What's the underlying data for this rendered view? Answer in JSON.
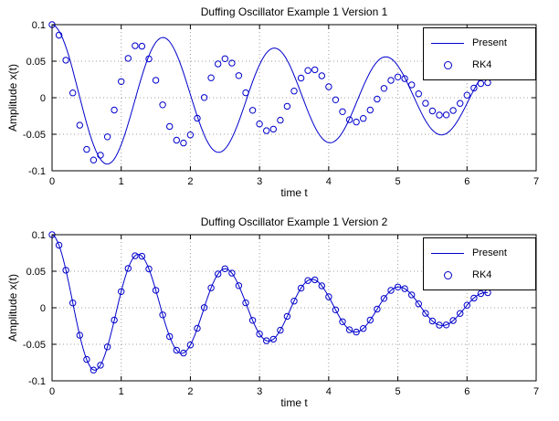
{
  "figure": {
    "background": "#FFFFFF"
  },
  "colors": {
    "accent": "#0000CC",
    "grid": "#9C9C9C",
    "axis": "#000000"
  },
  "chart_data": [
    {
      "type": "line",
      "title": "Duffing Oscillator Example 1 Version 1",
      "xlabel": "time t",
      "ylabel": "Amplitude x(t)",
      "xlim": [
        0,
        7
      ],
      "ylim": [
        -0.1,
        0.1
      ],
      "xticks": [
        0,
        1,
        2,
        3,
        4,
        5,
        6,
        7
      ],
      "xtick_labels": [
        "0",
        "1",
        "2",
        "3",
        "4",
        "5",
        "6",
        "7"
      ],
      "yticks": [
        -0.1,
        -0.05,
        0,
        0.05,
        0.1
      ],
      "ytick_labels": [
        "-0.1",
        "-0.05",
        "0",
        "0.05",
        "0.1"
      ],
      "grid": true,
      "legend": {
        "position": "top-right",
        "entries": [
          {
            "label": "Present",
            "marker": "line"
          },
          {
            "label": "RK4",
            "marker": "circle"
          }
        ]
      },
      "series": [
        {
          "name": "Present",
          "style": "line",
          "color": "#0000CC",
          "t_start": 0,
          "t_end": 6.3,
          "samples": 240,
          "model": {
            "kind": "damped_cosine",
            "amplitude": 0.1,
            "decay": 0.12,
            "omega": 3.9
          }
        },
        {
          "name": "RK4",
          "style": "circle",
          "color": "#0000CC",
          "t_start": 0,
          "t_end": 6.3,
          "samples": 64,
          "model": {
            "kind": "damped_cosine",
            "amplitude": 0.1,
            "decay": 0.25,
            "omega": 5.0
          }
        }
      ]
    },
    {
      "type": "line",
      "title": "Duffing Oscillator Example 1 Version 2",
      "xlabel": "time t",
      "ylabel": "Amplitude x(t)",
      "xlim": [
        0,
        7
      ],
      "ylim": [
        -0.1,
        0.1
      ],
      "xticks": [
        0,
        1,
        2,
        3,
        4,
        5,
        6,
        7
      ],
      "xtick_labels": [
        "0",
        "1",
        "2",
        "3",
        "4",
        "5",
        "6",
        "7"
      ],
      "yticks": [
        -0.1,
        -0.05,
        0,
        0.05,
        0.1
      ],
      "ytick_labels": [
        "-0.1",
        "-0.05",
        "0",
        "0.05",
        "0.1"
      ],
      "grid": true,
      "legend": {
        "position": "top-right",
        "entries": [
          {
            "label": "Present",
            "marker": "line"
          },
          {
            "label": "RK4",
            "marker": "circle"
          }
        ]
      },
      "series": [
        {
          "name": "Present",
          "style": "line",
          "color": "#0000CC",
          "t_start": 0,
          "t_end": 6.3,
          "samples": 240,
          "model": {
            "kind": "damped_cosine",
            "amplitude": 0.1,
            "decay": 0.25,
            "omega": 5.0
          }
        },
        {
          "name": "RK4",
          "style": "circle",
          "color": "#0000CC",
          "t_start": 0,
          "t_end": 6.3,
          "samples": 64,
          "model": {
            "kind": "damped_cosine",
            "amplitude": 0.1,
            "decay": 0.25,
            "omega": 5.0
          }
        }
      ]
    }
  ]
}
